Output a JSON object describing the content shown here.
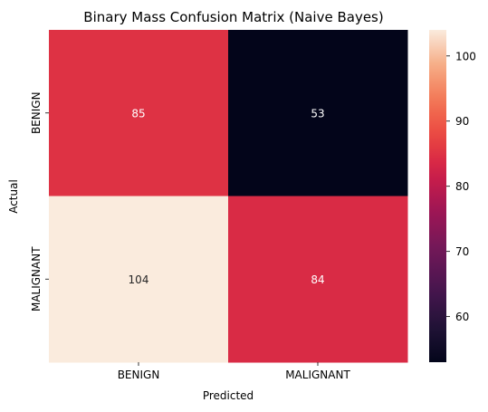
{
  "chart_data": {
    "type": "heatmap",
    "title": "Binary Mass Confusion Matrix (Naive Bayes)",
    "xlabel": "Predicted",
    "ylabel": "Actual",
    "x_categories": [
      "BENIGN",
      "MALIGNANT"
    ],
    "y_categories": [
      "BENIGN",
      "MALIGNANT"
    ],
    "values": [
      [
        85,
        53
      ],
      [
        104,
        84
      ]
    ],
    "colorbar": {
      "min": 53,
      "max": 104,
      "ticks": [
        60,
        70,
        80,
        90,
        100
      ],
      "colormap": "rocket"
    },
    "annotation_colors": {
      "on_dark": "#ffffff",
      "on_light": "#262626"
    }
  }
}
